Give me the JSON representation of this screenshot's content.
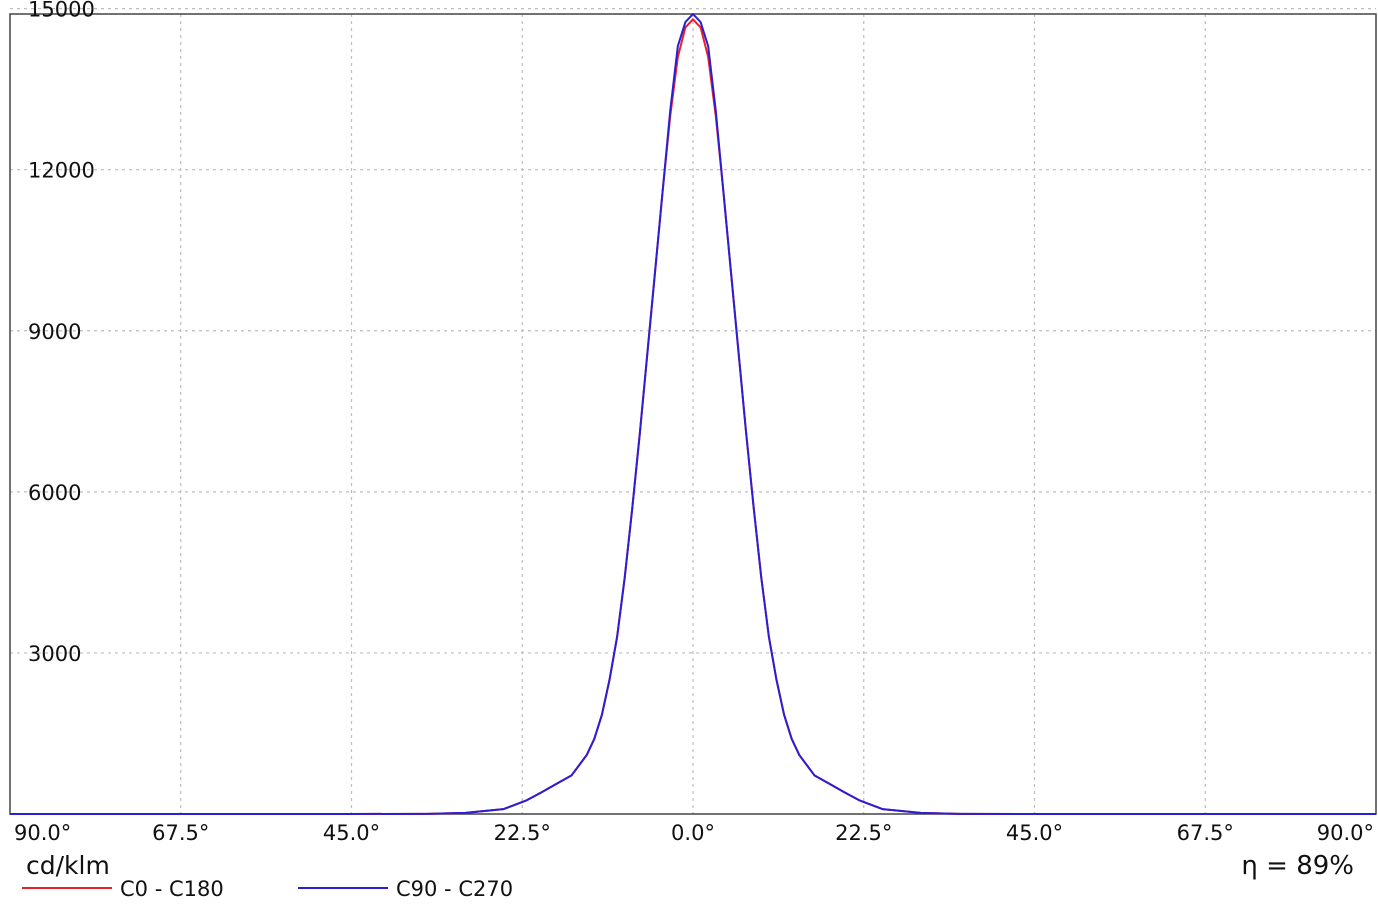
{
  "chart_data": {
    "type": "line",
    "unit_label": "cd/klm",
    "efficiency_label": "η = 89%",
    "x_ticks": [
      {
        "value": -90,
        "label": "90.0°"
      },
      {
        "value": -67.5,
        "label": "67.5°"
      },
      {
        "value": -45,
        "label": "45.0°"
      },
      {
        "value": -22.5,
        "label": "22.5°"
      },
      {
        "value": 0,
        "label": "0.0°"
      },
      {
        "value": 22.5,
        "label": "22.5°"
      },
      {
        "value": 45,
        "label": "45.0°"
      },
      {
        "value": 67.5,
        "label": "67.5°"
      },
      {
        "value": 90,
        "label": "90.0°"
      }
    ],
    "y_ticks": [
      {
        "value": 3000,
        "label": "3000"
      },
      {
        "value": 6000,
        "label": "6000"
      },
      {
        "value": 9000,
        "label": "9000"
      },
      {
        "value": 12000,
        "label": "12000"
      },
      {
        "value": 15000,
        "label": "15000"
      }
    ],
    "xlim": [
      -90,
      90
    ],
    "ylim": [
      0,
      14900
    ],
    "grid": true,
    "legend_position": "bottom-left",
    "series": [
      {
        "name": "C0 - C180",
        "color": "#e8202a",
        "x": [
          -90,
          -45,
          -35,
          -30,
          -25,
          -22,
          -20,
          -18,
          -16,
          -14,
          -13,
          -12,
          -11,
          -10,
          -9,
          -8,
          -7,
          -6,
          -5,
          -4,
          -3,
          -2,
          -1,
          0,
          1,
          2,
          3,
          4,
          5,
          6,
          7,
          8,
          9,
          10,
          11,
          12,
          13,
          14,
          16,
          18,
          20,
          22,
          25,
          30,
          35,
          45,
          90
        ],
        "y": [
          0,
          0,
          3,
          20,
          90,
          250,
          400,
          560,
          720,
          1100,
          1400,
          1850,
          2500,
          3300,
          4400,
          5700,
          7100,
          8600,
          10100,
          11600,
          13000,
          14100,
          14650,
          14800,
          14650,
          14100,
          13000,
          11600,
          10100,
          8600,
          7100,
          5700,
          4400,
          3300,
          2500,
          1850,
          1400,
          1100,
          720,
          560,
          400,
          250,
          90,
          20,
          3,
          0,
          0
        ]
      },
      {
        "name": "C90 - C270",
        "color": "#2a1fd6",
        "x": [
          -90,
          -45,
          -35,
          -30,
          -25,
          -22,
          -20,
          -18,
          -16,
          -14,
          -13,
          -12,
          -11,
          -10,
          -9,
          -8,
          -7,
          -6,
          -5,
          -4,
          -3,
          -2,
          -1,
          0,
          1,
          2,
          3,
          4,
          5,
          6,
          7,
          8,
          9,
          10,
          11,
          12,
          13,
          14,
          16,
          18,
          20,
          22,
          25,
          30,
          35,
          45,
          90
        ],
        "y": [
          0,
          0,
          3,
          20,
          90,
          250,
          400,
          560,
          720,
          1100,
          1400,
          1850,
          2500,
          3300,
          4400,
          5700,
          7100,
          8600,
          10100,
          11600,
          13100,
          14300,
          14750,
          14900,
          14750,
          14300,
          13100,
          11600,
          10100,
          8600,
          7100,
          5700,
          4400,
          3300,
          2500,
          1850,
          1400,
          1100,
          720,
          560,
          400,
          250,
          90,
          20,
          3,
          0,
          0
        ]
      }
    ]
  }
}
